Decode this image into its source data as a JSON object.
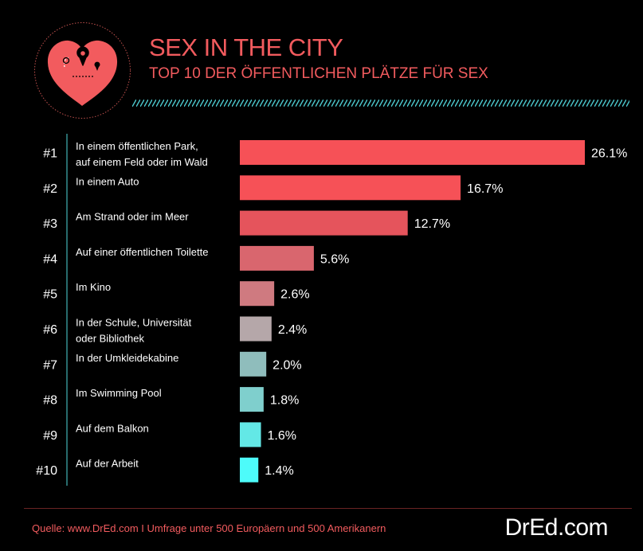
{
  "header": {
    "title": "SEX IN THE CITY",
    "subtitle": "TOP 10 DER ÖFFENTLICHEN PLÄTZE FÜR SEX",
    "icon": "heart-map-pin-icon",
    "accent_color": "#f25b5e"
  },
  "chart_data": {
    "type": "bar",
    "orientation": "horizontal",
    "title": "TOP 10 DER ÖFFENTLICHEN PLÄTZE FÜR SEX",
    "unit": "%",
    "ranks": [
      "#1",
      "#2",
      "#3",
      "#4",
      "#5",
      "#6",
      "#7",
      "#8",
      "#9",
      "#10"
    ],
    "categories": [
      [
        "In einem öffentlichen Park,",
        "auf einem Feld oder im Wald"
      ],
      [
        "In einem Auto"
      ],
      [
        "Am Strand oder im Meer"
      ],
      [
        "Auf einer öffentlichen Toilette"
      ],
      [
        "Im Kino"
      ],
      [
        "In der Schule, Universität",
        "oder Bibliothek"
      ],
      [
        "In der Umkleidekabine"
      ],
      [
        "Im Swimming Pool"
      ],
      [
        "Auf dem Balkon"
      ],
      [
        "Auf der Arbeit"
      ]
    ],
    "values": [
      26.1,
      16.7,
      12.7,
      5.6,
      2.6,
      2.4,
      2.0,
      1.8,
      1.6,
      1.4
    ],
    "value_labels": [
      "26.1%",
      "16.7%",
      "12.7%",
      "5.6%",
      "2.6%",
      "2.4%",
      "2.0%",
      "1.8%",
      "1.6%",
      "1.4%"
    ],
    "colors": [
      "#f65157",
      "#f65157",
      "#e5545c",
      "#d9666e",
      "#cf7a80",
      "#b5a7a9",
      "#8fbdbc",
      "#7fcfcd",
      "#63e8e6",
      "#4dfbfa"
    ],
    "xlim": [
      0,
      26.1
    ]
  },
  "footer": {
    "source": "Quelle: www.DrEd.com I Umfrage unter 500 Europäern und 500 Amerikanern",
    "logo": "DrEd.com"
  }
}
